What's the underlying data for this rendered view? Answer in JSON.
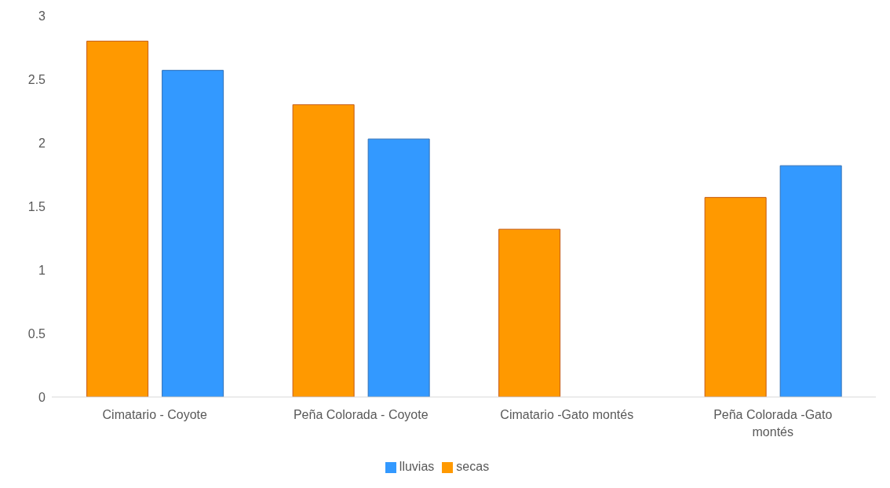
{
  "chart_data": {
    "type": "bar",
    "categories": [
      "Cimatario - Coyote",
      "Peña Colorada - Coyote",
      "Cimatario -Gato montés",
      "Peña Colorada -Gato montés"
    ],
    "series": [
      {
        "name": "secas",
        "color": "#ff9900",
        "values": [
          2.8,
          2.3,
          1.32,
          1.57
        ]
      },
      {
        "name": "lluvias",
        "color": "#3399ff",
        "values": [
          2.57,
          2.03,
          null,
          1.82
        ]
      }
    ],
    "ylim": [
      0,
      3
    ],
    "yticks": [
      0,
      0.5,
      1,
      1.5,
      2,
      2.5,
      3
    ],
    "grid": false,
    "legend": "bottom"
  }
}
